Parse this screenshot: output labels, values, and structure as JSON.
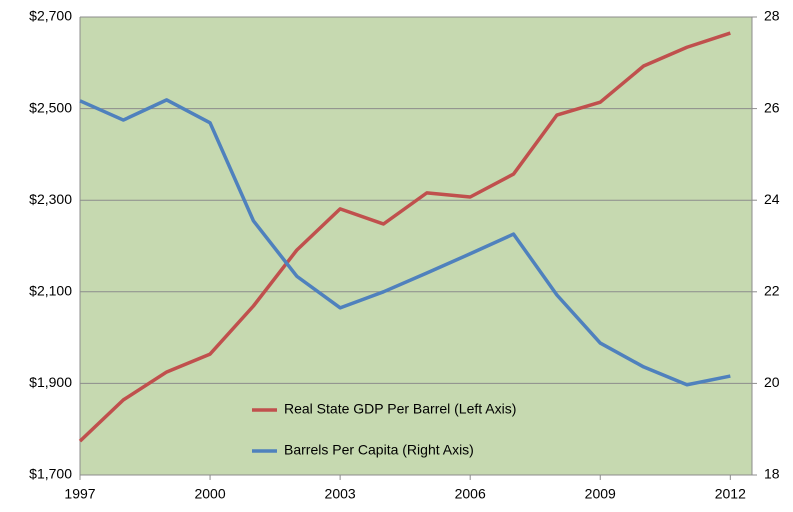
{
  "chart_data": {
    "type": "line",
    "x": [
      1997,
      1998,
      1999,
      2000,
      2001,
      2002,
      2003,
      2004,
      2005,
      2006,
      2007,
      2008,
      2009,
      2010,
      2011,
      2012
    ],
    "series": [
      {
        "name": "Real State GDP Per Barrel (Left Axis)",
        "color": "#c0504d",
        "axis": "y",
        "values": [
          1774,
          1864,
          1925,
          1964,
          2069,
          2191,
          2281,
          2248,
          2316,
          2307,
          2357,
          2486,
          2514,
          2593,
          2634,
          2665
        ]
      },
      {
        "name": "Barrels Per Capita (Right Axis)",
        "color": "#4f81bd",
        "axis": "y2",
        "values": [
          26.17,
          25.75,
          26.19,
          25.69,
          23.55,
          22.34,
          21.65,
          22.0,
          22.41,
          22.83,
          23.26,
          21.93,
          20.88,
          20.36,
          19.97,
          20.16
        ]
      }
    ],
    "xlim": [
      1997,
      2012.5
    ],
    "xticks": [
      1997,
      2000,
      2003,
      2006,
      2009,
      2012
    ],
    "ylim": [
      1700,
      2700
    ],
    "yticks": [
      {
        "value": 1700,
        "label": "$1,700"
      },
      {
        "value": 1900,
        "label": "$1,900"
      },
      {
        "value": 2100,
        "label": "$2,100"
      },
      {
        "value": 2300,
        "label": "$2,300"
      },
      {
        "value": 2500,
        "label": "$2,500"
      },
      {
        "value": 2700,
        "label": "$2,700"
      }
    ],
    "y2lim": [
      18,
      28
    ],
    "y2ticks": [
      18,
      20,
      22,
      24,
      26,
      28
    ],
    "grid": true,
    "plot_background": "#c6d9b0"
  }
}
